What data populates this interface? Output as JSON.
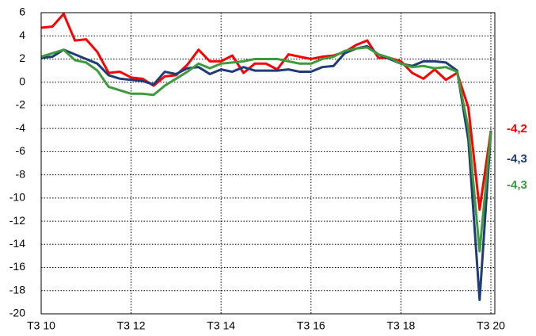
{
  "chart_data": {
    "type": "line",
    "categories": [
      "T3 10",
      null,
      null,
      null,
      null,
      null,
      null,
      null,
      "T3 12",
      null,
      null,
      null,
      null,
      null,
      null,
      null,
      "T3 14",
      null,
      null,
      null,
      null,
      null,
      null,
      null,
      "T3 16",
      null,
      null,
      null,
      null,
      null,
      null,
      null,
      "T3 18",
      null,
      null,
      null,
      null,
      null,
      null,
      null,
      "T3 20"
    ],
    "series": [
      {
        "color": "#ff0000",
        "values": [
          4.7,
          4.8,
          5.9,
          3.6,
          3.7,
          2.6,
          0.8,
          0.9,
          0.4,
          0.3,
          -0.3,
          0.5,
          0.6,
          1.5,
          2.8,
          1.8,
          1.8,
          2.3,
          0.8,
          1.6,
          1.6,
          1.1,
          2.4,
          2.2,
          2.0,
          2.2,
          2.3,
          2.6,
          3.2,
          3.6,
          2.1,
          2.1,
          1.8,
          0.8,
          0.3,
          1.1,
          0.2,
          0.8,
          -2.2,
          -11,
          -4.2
        ],
        "value_labels": [
          null,
          null,
          null,
          null,
          null,
          null,
          null,
          null,
          null,
          null,
          null,
          null,
          null,
          null,
          null,
          null,
          null,
          null,
          null,
          null,
          null,
          null,
          null,
          null,
          null,
          null,
          null,
          null,
          null,
          null,
          null,
          null,
          null,
          null,
          null,
          null,
          null,
          null,
          null,
          null,
          "-4,2"
        ]
      },
      {
        "color": "#1f3c78",
        "values": [
          2.1,
          2.2,
          2.8,
          2.4,
          2.0,
          1.6,
          0.6,
          0.3,
          0.2,
          0.1,
          -0.2,
          0.9,
          0.7,
          1.2,
          1.3,
          0.7,
          1.1,
          0.9,
          1.3,
          1.0,
          1.0,
          1.0,
          1.1,
          0.9,
          0.9,
          1.3,
          1.4,
          2.5,
          2.9,
          3.1,
          2.4,
          2.0,
          1.6,
          1.4,
          1.8,
          1.8,
          1.7,
          1.0,
          -5,
          -18.8,
          -4.3
        ],
        "value_labels": [
          null,
          null,
          null,
          null,
          null,
          null,
          null,
          null,
          null,
          null,
          null,
          null,
          null,
          null,
          null,
          null,
          null,
          null,
          null,
          null,
          null,
          null,
          null,
          null,
          null,
          null,
          null,
          null,
          null,
          null,
          null,
          null,
          null,
          null,
          null,
          null,
          null,
          null,
          null,
          null,
          "-4,3"
        ]
      },
      {
        "color": "#3c9c3c",
        "values": [
          2.2,
          2.5,
          2.8,
          1.9,
          1.7,
          1.0,
          -0.4,
          -0.7,
          -1.0,
          -1.0,
          -1.1,
          -0.3,
          0.3,
          0.9,
          1.6,
          1.2,
          1.6,
          1.7,
          1.8,
          2.0,
          2.0,
          2.0,
          1.8,
          1.6,
          1.6,
          2.0,
          2.2,
          2.7,
          2.9,
          3.0,
          2.4,
          2.1,
          1.6,
          1.3,
          1.4,
          1.2,
          1.3,
          0.9,
          -4,
          -14.6,
          -4.3
        ],
        "value_labels": [
          null,
          null,
          null,
          null,
          null,
          null,
          null,
          null,
          null,
          null,
          null,
          null,
          null,
          null,
          null,
          null,
          null,
          null,
          null,
          null,
          null,
          null,
          null,
          null,
          null,
          null,
          null,
          null,
          null,
          null,
          null,
          null,
          null,
          null,
          null,
          null,
          null,
          null,
          null,
          null,
          "-4,3"
        ]
      }
    ],
    "ylim": [
      -20,
      6
    ],
    "yticks": [
      -20,
      -18,
      -16,
      -14,
      -12,
      -10,
      -8,
      -6,
      -4,
      -2,
      0,
      2,
      4,
      6
    ],
    "grid": true
  }
}
